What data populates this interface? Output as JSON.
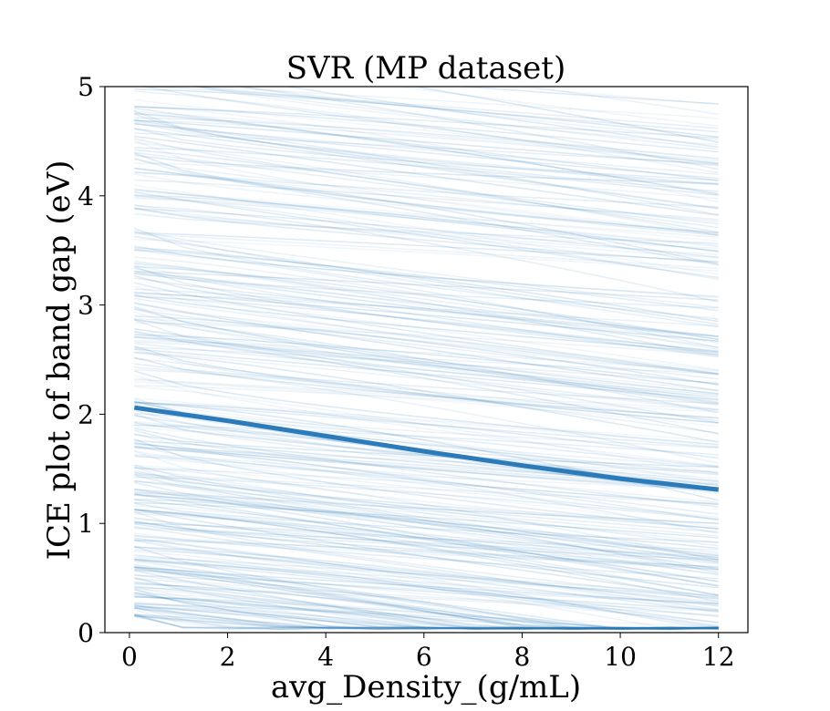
{
  "chart_data": {
    "type": "line",
    "title": "SVR (MP dataset)",
    "xlabel": "avg_Density_(g/mL)",
    "ylabel": "ICE plot of band gap (eV)",
    "xlim": [
      -0.5,
      12.6
    ],
    "ylim": [
      0,
      5
    ],
    "x_ticks": [
      0,
      2,
      4,
      6,
      8,
      10,
      12
    ],
    "y_ticks": [
      0,
      1,
      2,
      3,
      4,
      5
    ],
    "grid": false,
    "series": [
      {
        "role": "average",
        "color": "#2b7bba",
        "x": [
          0.1,
          2,
          4,
          6,
          8,
          10,
          12
        ],
        "y": [
          2.06,
          1.94,
          1.8,
          1.66,
          1.53,
          1.41,
          1.31
        ]
      }
    ],
    "ice_lines": {
      "color": "#2b7bba",
      "count": 320,
      "x_range": [
        0.1,
        12
      ],
      "y_start_range": [
        0.15,
        5.0
      ],
      "approx_drop_at_x12": [
        0.25,
        0.9
      ]
    }
  }
}
